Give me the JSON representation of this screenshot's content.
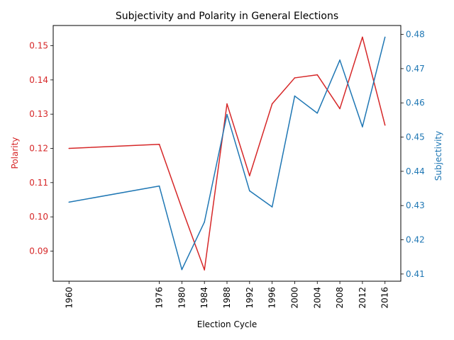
{
  "chart_data": {
    "type": "line",
    "title": "Subjectivity and Polarity in General Elections",
    "xlabel": "Election Cycle",
    "x": [
      1960,
      1976,
      1980,
      1984,
      1988,
      1992,
      1996,
      2000,
      2004,
      2008,
      2012,
      2016
    ],
    "x_tick_labels": [
      "1960",
      "1976",
      "1980",
      "1984",
      "1988",
      "1992",
      "1996",
      "2000",
      "2004",
      "2008",
      "2012",
      "2016"
    ],
    "xlim": [
      1957.2,
      2018.8
    ],
    "grid": false,
    "series": [
      {
        "name": "Polarity",
        "axis": "left",
        "color": "#d62728",
        "values": [
          0.12,
          0.1212,
          0.1025,
          0.0845,
          0.133,
          0.112,
          0.133,
          0.1406,
          0.1415,
          0.1316,
          0.1525,
          0.1268
        ]
      },
      {
        "name": "Subjectivity",
        "axis": "right",
        "color": "#1f77b4",
        "values": [
          0.431,
          0.4357,
          0.4113,
          0.4252,
          0.4566,
          0.4343,
          0.4296,
          0.462,
          0.457,
          0.4725,
          0.453,
          0.4792
        ]
      }
    ],
    "left_axis": {
      "label": "Polarity",
      "color": "#d62728",
      "ylim": [
        0.0812,
        0.1559
      ],
      "ticks": [
        0.09,
        0.1,
        0.11,
        0.12,
        0.13,
        0.14,
        0.15
      ],
      "tick_labels": [
        "0.09",
        "0.10",
        "0.11",
        "0.12",
        "0.13",
        "0.14",
        "0.15"
      ]
    },
    "right_axis": {
      "label": "Subjectivity",
      "color": "#1f77b4",
      "ylim": [
        0.4079,
        0.4826
      ],
      "ticks": [
        0.41,
        0.42,
        0.43,
        0.44,
        0.45,
        0.46,
        0.47,
        0.48
      ],
      "tick_labels": [
        "0.41",
        "0.42",
        "0.43",
        "0.44",
        "0.45",
        "0.46",
        "0.47",
        "0.48"
      ]
    }
  }
}
